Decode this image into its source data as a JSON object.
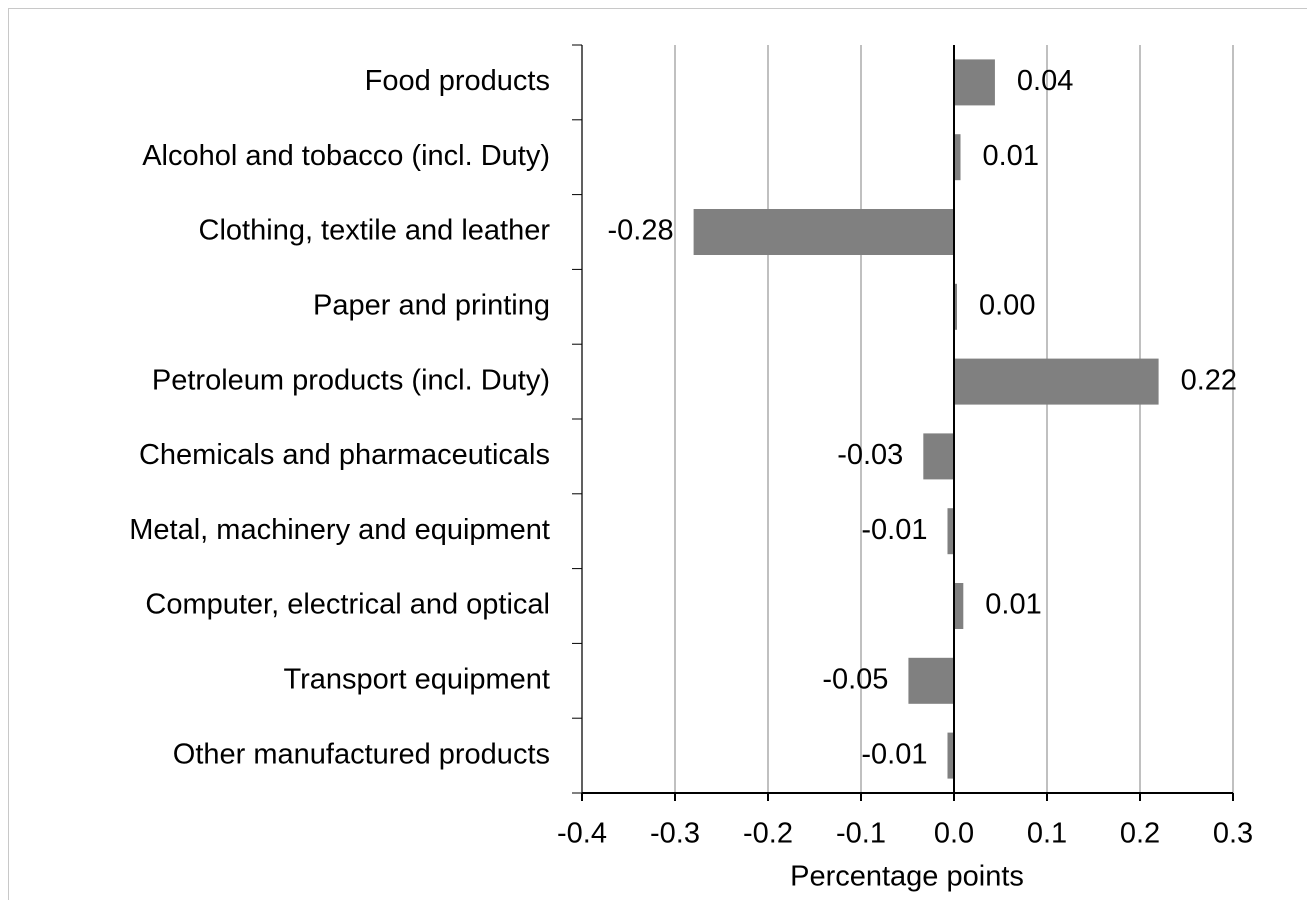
{
  "chart_data": {
    "type": "bar",
    "orientation": "horizontal",
    "categories": [
      "Food products",
      "Alcohol and tobacco (incl. Duty)",
      "Clothing, textile and leather",
      "Paper and printing",
      "Petroleum products (incl. Duty)",
      "Chemicals and pharmaceuticals",
      "Metal, machinery and equipment",
      "Computer, electrical and optical",
      "Transport equipment",
      "Other manufactured products"
    ],
    "values": [
      0.044,
      0.007,
      -0.28,
      0.003,
      0.22,
      -0.033,
      -0.007,
      0.01,
      -0.049,
      -0.007
    ],
    "value_labels": [
      "0.04",
      "0.01",
      "-0.28",
      "0.00",
      "0.22",
      "-0.03",
      "-0.01",
      "0.01",
      "-0.05",
      "-0.01"
    ],
    "color": "#808080",
    "xlabel": "Percentage points",
    "xlim": [
      -0.4,
      0.3
    ],
    "xticks": [
      -0.4,
      -0.3,
      -0.2,
      -0.1,
      {
        "value": 0,
        "label": "0.0"
      },
      0.1,
      0.2,
      0.3
    ],
    "grid": true
  }
}
